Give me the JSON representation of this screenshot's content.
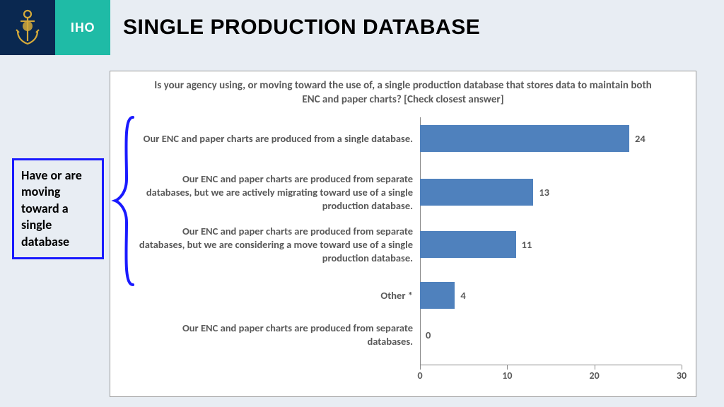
{
  "header": {
    "iho_label": "IHO",
    "title": "SINGLE PRODUCTION DATABASE"
  },
  "callout": {
    "text": "Have or are moving toward a single database",
    "border_color": "#1a1aff"
  },
  "chart": {
    "type": "bar-horizontal",
    "title": "Is your agency using, or moving toward the use of, a single production database that stores data to maintain both ENC and paper charts? [Check closest answer]",
    "bar_color": "#4f81bd",
    "text_color": "#595959",
    "background_color": "#ffffff",
    "title_fontsize": 15,
    "label_fontsize": 14.5,
    "xlim": [
      0,
      30
    ],
    "xtick_step": 10,
    "xticks": [
      0,
      10,
      20,
      30
    ],
    "categories": [
      {
        "label": "Our ENC and paper charts are produced from a single database.",
        "value": 24
      },
      {
        "label": "Our ENC and paper charts are produced from separate databases, but we are actively migrating toward use of a single production database.",
        "value": 13
      },
      {
        "label": "Our ENC and paper charts are produced from separate databases, but we are considering a move toward use of a single production database.",
        "value": 11
      },
      {
        "label": "Other *",
        "value": 4
      },
      {
        "label": "Our ENC and paper charts are produced from separate databases.",
        "value": 0
      }
    ]
  }
}
